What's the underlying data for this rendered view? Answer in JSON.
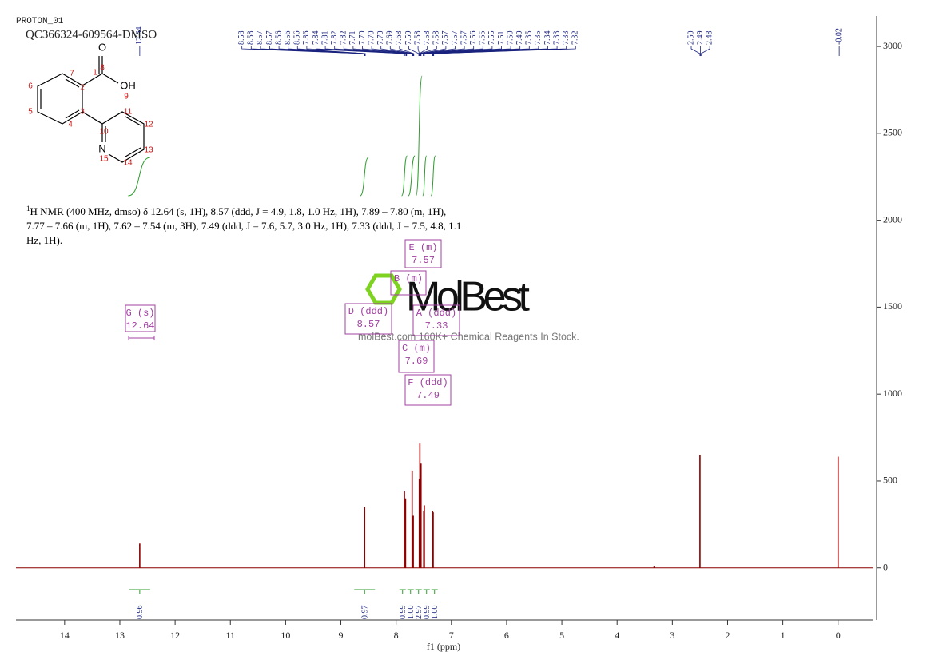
{
  "chart_data": {
    "type": "nmr",
    "experiment": "PROTON_01",
    "sample": "QC366324-609564-DMSO",
    "xlabel": "f1 (ppm)",
    "xlim": [
      14.88,
      -0.64
    ],
    "xticks": [
      14,
      13,
      12,
      11,
      10,
      9,
      8,
      7,
      6,
      5,
      4,
      3,
      2,
      1,
      0
    ],
    "ylim": [
      -300,
      3175
    ],
    "yticks": [
      0,
      500,
      1000,
      1500,
      2000,
      2500,
      3000
    ],
    "color": "#8b0000",
    "x": [
      12.64,
      8.57,
      7.85,
      7.83,
      7.71,
      7.69,
      7.58,
      7.57,
      7.55,
      7.5,
      7.49,
      7.34,
      7.33,
      3.33,
      2.5,
      0.0
    ],
    "values": [
      140,
      350,
      440,
      400,
      560,
      300,
      510,
      715,
      600,
      330,
      360,
      330,
      320,
      12,
      650,
      640
    ],
    "peak_labels": [
      "12.64",
      "8.58",
      "8.58",
      "8.57",
      "8.57",
      "8.56",
      "8.56",
      "8.56",
      "7.86",
      "7.84",
      "7.81",
      "7.82",
      "7.82",
      "7.71",
      "7.70",
      "7.70",
      "7.70",
      "7.69",
      "7.68",
      "7.59",
      "7.58",
      "7.58",
      "7.58",
      "7.57",
      "7.57",
      "7.57",
      "7.56",
      "7.55",
      "7.55",
      "7.51",
      "7.50",
      "7.49",
      "7.35",
      "7.35",
      "7.34",
      "7.33",
      "7.33",
      "7.32",
      "2.50",
      "2.49",
      "2.48",
      "-0.02"
    ],
    "integrals": [
      "0.96",
      "0.97",
      "0.99",
      "1.00",
      "2.97",
      "0.99",
      "1.00"
    ],
    "multiplets": [
      {
        "label": "G (s)",
        "shift": "12.64"
      },
      {
        "label": "D (ddd)",
        "shift": "8.57"
      },
      {
        "label": "B (m)"
      },
      {
        "label": "E (m)",
        "shift": "7.57"
      },
      {
        "label": "A (ddd)",
        "shift": "7.33"
      },
      {
        "label": "C (m)",
        "shift": "7.69"
      },
      {
        "label": "F (ddd)",
        "shift": "7.49"
      }
    ],
    "description": {
      "superscript": "1",
      "lines": [
        "H NMR (400 MHz, dmso) δ 12.64 (s, 1H), 8.57 (ddd, J = 4.9, 1.8, 1.0 Hz, 1H), 7.89 – 7.80 (m, 1H),",
        "7.77 – 7.66 (m, 1H), 7.62 – 7.54 (m, 3H), 7.49 (ddd, J = 7.6, 5.7, 3.0 Hz, 1H), 7.33 (ddd, J = 7.5, 4.8, 1.1",
        "Hz, 1H)."
      ]
    },
    "structure": {
      "atoms": [
        "O",
        "OH",
        "N"
      ],
      "numbers": [
        "1",
        "2",
        "3",
        "4",
        "5",
        "6",
        "7",
        "8",
        "9",
        "10",
        "11",
        "12",
        "13",
        "14",
        "15"
      ]
    },
    "watermark": {
      "brand": "MolBest",
      "tagline": "molBest.com 160K+ Chemical Reagents In Stock."
    }
  }
}
